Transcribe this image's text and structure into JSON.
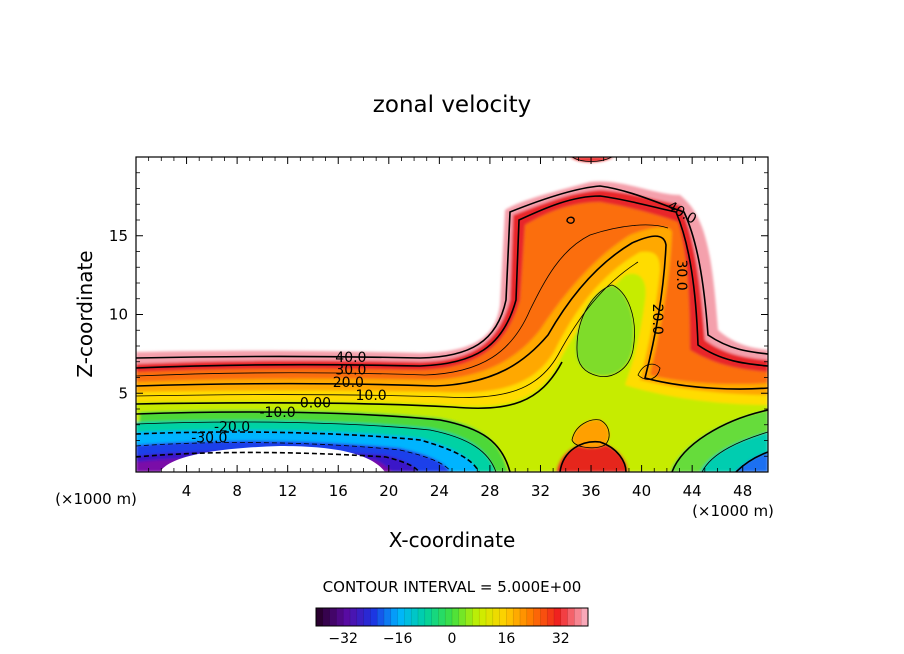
{
  "chart_data": {
    "type": "heatmap",
    "title": "zonal velocity",
    "xlabel": "X-coordinate",
    "ylabel": "Z-coordinate",
    "x_unit_left": "(×1000 m)",
    "x_unit_right": "(×1000 m)",
    "xlim": [
      0,
      50
    ],
    "ylim": [
      0,
      20
    ],
    "x_ticks": [
      4,
      8,
      12,
      16,
      20,
      24,
      28,
      32,
      36,
      40,
      44,
      48
    ],
    "y_ticks": [
      5,
      10,
      15
    ],
    "contour_interval_text": "CONTOUR INTERVAL = 5.000E+00",
    "contour_labels": [
      {
        "text": "40.0",
        "x": 17.0,
        "y": 7.3
      },
      {
        "text": "30.0",
        "x": 17.0,
        "y": 6.5
      },
      {
        "text": "20.0",
        "x": 16.8,
        "y": 5.7
      },
      {
        "text": "10.0",
        "x": 18.6,
        "y": 4.9
      },
      {
        "text": "0.00",
        "x": 14.2,
        "y": 4.4
      },
      {
        "text": "-10.0",
        "x": 11.2,
        "y": 3.8
      },
      {
        "text": "-20.0",
        "x": 7.6,
        "y": 2.9
      },
      {
        "text": "-30.0",
        "x": 5.8,
        "y": 2.2
      },
      {
        "text": "40.0",
        "x": 43.2,
        "y": 16.5
      },
      {
        "text": "30.0",
        "x": 43.2,
        "y": 12.5
      },
      {
        "text": "20.0",
        "x": 41.3,
        "y": 9.7
      }
    ],
    "colorbar": {
      "min": -40,
      "max": 40,
      "ticks": [
        -32,
        -16,
        0,
        16,
        32
      ],
      "tick_labels": [
        "−32",
        "−16",
        "0",
        "16",
        "32"
      ],
      "colormap": [
        "#2a0030",
        "#5a0aa0",
        "#1e30e0",
        "#00b4ff",
        "#00d2a0",
        "#40e040",
        "#c8f000",
        "#ffd000",
        "#ff7800",
        "#f02020",
        "#f8a8b8"
      ]
    }
  }
}
